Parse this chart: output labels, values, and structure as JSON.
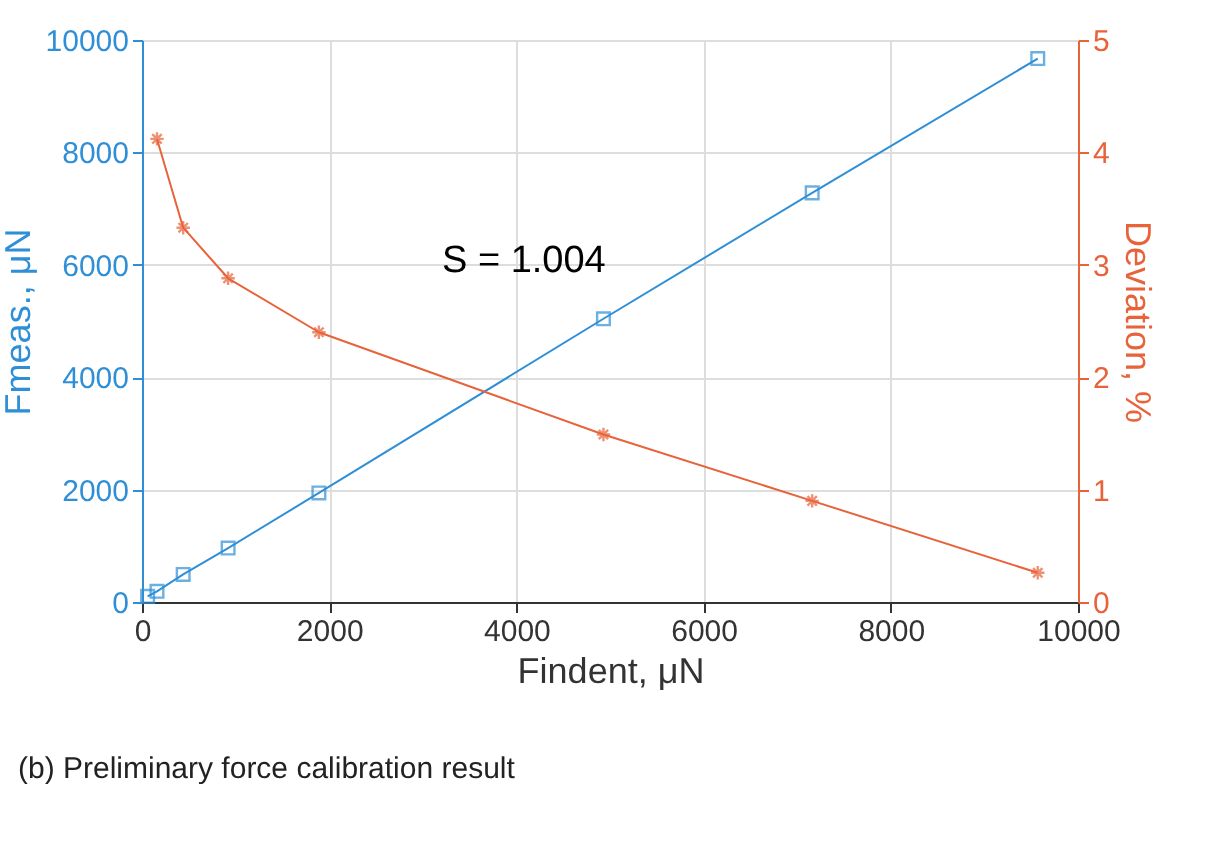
{
  "chart_data": {
    "type": "line",
    "xlabel": "Findent, μN",
    "ylabel": "Fmeas., μN",
    "y2label": "Deviation, %",
    "series": [
      {
        "name": null,
        "color": "#2f8fd6",
        "marker": "square",
        "x": [
          60,
          160,
          440,
          920,
          1890,
          4930,
          7160,
          9570
        ],
        "values": [
          100,
          190,
          490,
          960,
          1940,
          5040,
          7280,
          9670
        ]
      },
      {
        "name": null,
        "color": "#e8623a",
        "marker": "cross",
        "axis": "y2",
        "x": [
          160,
          440,
          920,
          1890,
          4930,
          7160,
          9570
        ],
        "values": [
          4.12,
          3.33,
          2.88,
          2.4,
          1.49,
          0.9,
          0.26
        ]
      }
    ],
    "xlim": [
      0,
      10000
    ],
    "xticks": [
      0,
      2000,
      4000,
      6000,
      8000,
      10000
    ],
    "ylim": [
      0,
      10000
    ],
    "yticks": [
      0,
      2000,
      4000,
      6000,
      8000,
      10000
    ],
    "y2lim": [
      0,
      5
    ],
    "y2ticks": [
      0,
      1,
      2,
      3,
      4,
      5
    ],
    "grid": true,
    "line_style": "solid",
    "annotations": [
      "S = 1.004",
      "(b)     Preliminary force calibration result"
    ]
  }
}
